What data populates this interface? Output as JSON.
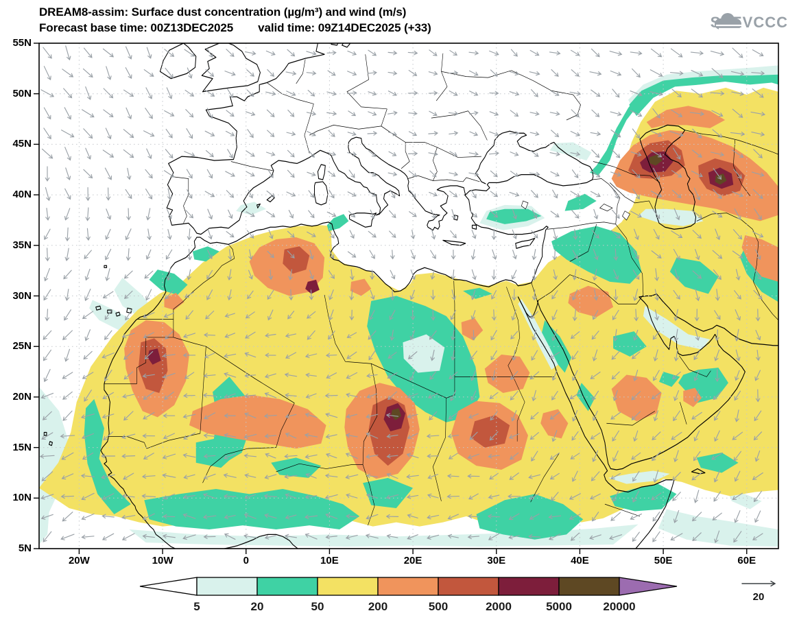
{
  "header": {
    "title": "DREAM8-assim: Surface dust concentration (µg/m³) and wind (m/s)",
    "forecast_base": "Forecast base time: 00Z13DEC2025",
    "valid_time": "valid time: 09Z14DEC2025 (+33)",
    "logo_text": "SEEVCCC"
  },
  "legend": {
    "values": [
      "5",
      "20",
      "50",
      "200",
      "500",
      "2000",
      "5000",
      "20000"
    ],
    "band_colors": [
      "#ffffff",
      "#d9f2ec",
      "#3fd2a4",
      "#f3e163",
      "#f0945c",
      "#c2573d",
      "#7d1e3b",
      "#5e4823",
      "#9c6cb0"
    ]
  },
  "wind_ref": {
    "label": "20"
  },
  "chart_data": {
    "type": "heatmap",
    "title": "DREAM8-assim: Surface dust concentration (µg/m³) and wind (m/s)",
    "subtitle": "Forecast base time: 00Z13DEC2025   valid time: 09Z14DEC2025 (+33)",
    "variable": "surface dust concentration",
    "units": "µg/m³",
    "wind_units": "m/s",
    "wind_reference_speed": 20,
    "levels": [
      5,
      20,
      50,
      200,
      500,
      2000,
      5000,
      20000
    ],
    "colors": [
      "#ffffff",
      "#d9f2ec",
      "#3fd2a4",
      "#f3e163",
      "#f0945c",
      "#c2573d",
      "#7d1e3b",
      "#5e4823",
      "#9c6cb0"
    ],
    "extent": {
      "lon_min": -24.8,
      "lon_max": 63.8,
      "lat_min": 5,
      "lat_max": 55
    },
    "lat_ticks": [
      {
        "lat": 55,
        "label": "55N"
      },
      {
        "lat": 50,
        "label": "50N"
      },
      {
        "lat": 45,
        "label": "45N"
      },
      {
        "lat": 40,
        "label": "40N"
      },
      {
        "lat": 35,
        "label": "35N"
      },
      {
        "lat": 30,
        "label": "30N"
      },
      {
        "lat": 25,
        "label": "25N"
      },
      {
        "lat": 20,
        "label": "20N"
      },
      {
        "lat": 15,
        "label": "15N"
      },
      {
        "lat": 10,
        "label": "10N"
      },
      {
        "lat": 5,
        "label": "5N"
      }
    ],
    "lon_ticks": [
      {
        "lon": -20,
        "label": "20W"
      },
      {
        "lon": -10,
        "label": "10W"
      },
      {
        "lon": 0,
        "label": "0"
      },
      {
        "lon": 10,
        "label": "10E"
      },
      {
        "lon": 20,
        "label": "20E"
      },
      {
        "lon": 30,
        "label": "30E"
      },
      {
        "lon": 40,
        "label": "40E"
      },
      {
        "lon": 50,
        "label": "50E"
      },
      {
        "lon": 60,
        "label": "60E"
      }
    ],
    "wind_field": {
      "cols_frac": [
        0,
        0.14,
        0.28,
        0.43,
        0.57,
        0.71,
        0.85,
        1
      ],
      "rows_frac": [
        0,
        0.2,
        0.4,
        0.6,
        0.8,
        1
      ],
      "angles_deg": [
        [
          52,
          48,
          34,
          22,
          18,
          24,
          32,
          28
        ],
        [
          60,
          50,
          30,
          18,
          14,
          20,
          28,
          24
        ],
        [
          95,
          105,
          62,
          48,
          70,
          82,
          58,
          38
        ],
        [
          128,
          152,
          172,
          148,
          112,
          122,
          108,
          88
        ],
        [
          148,
          168,
          190,
          184,
          158,
          138,
          128,
          118
        ],
        [
          152,
          162,
          186,
          192,
          172,
          152,
          140,
          134
        ]
      ],
      "speed_factor": [
        [
          1.2,
          1.0,
          0.7,
          0.55,
          0.55,
          0.7,
          1.1,
          1.1
        ],
        [
          1.2,
          0.9,
          0.6,
          0.5,
          0.5,
          0.6,
          1.0,
          1.1
        ],
        [
          1.0,
          0.8,
          0.6,
          0.55,
          0.6,
          0.7,
          0.9,
          0.9
        ],
        [
          1.0,
          0.9,
          0.8,
          0.8,
          0.7,
          0.8,
          0.8,
          0.8
        ],
        [
          1.1,
          1.0,
          0.9,
          0.9,
          0.8,
          0.8,
          0.9,
          0.9
        ],
        [
          1.1,
          1.0,
          0.9,
          0.9,
          0.8,
          0.9,
          1.0,
          1.0
        ]
      ]
    }
  }
}
